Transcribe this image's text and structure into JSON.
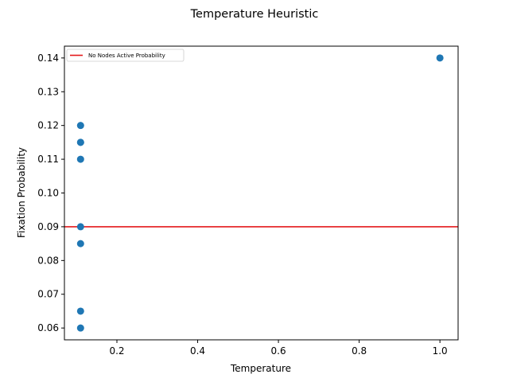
{
  "chart_data": {
    "type": "scatter",
    "title": "Temperature Heuristic",
    "xlabel": "Temperature",
    "ylabel": "Fixation Probability",
    "xlim": [
      0.07,
      1.045
    ],
    "ylim": [
      0.0565,
      0.1435
    ],
    "xticks": [
      0.2,
      0.4,
      0.6,
      0.8,
      1.0
    ],
    "xtick_labels": [
      "0.2",
      "0.4",
      "0.6",
      "0.8",
      "1.0"
    ],
    "yticks": [
      0.06,
      0.07,
      0.08,
      0.09,
      0.1,
      0.11,
      0.12,
      0.13,
      0.14
    ],
    "ytick_labels": [
      "0.06",
      "0.07",
      "0.08",
      "0.09",
      "0.10",
      "0.11",
      "0.12",
      "0.13",
      "0.14"
    ],
    "grid": false,
    "legend_position": "top-left",
    "series": [
      {
        "type": "scatter",
        "color": "#1f77b4",
        "x": [
          0.11,
          0.11,
          0.11,
          0.11,
          0.11,
          0.11,
          0.11,
          0.11,
          1.0
        ],
        "y": [
          0.12,
          0.115,
          0.115,
          0.11,
          0.09,
          0.085,
          0.065,
          0.06,
          0.14
        ]
      },
      {
        "type": "hline",
        "name": "No Nodes Active Probability",
        "color": "#e41a1c",
        "y": 0.09
      }
    ]
  }
}
